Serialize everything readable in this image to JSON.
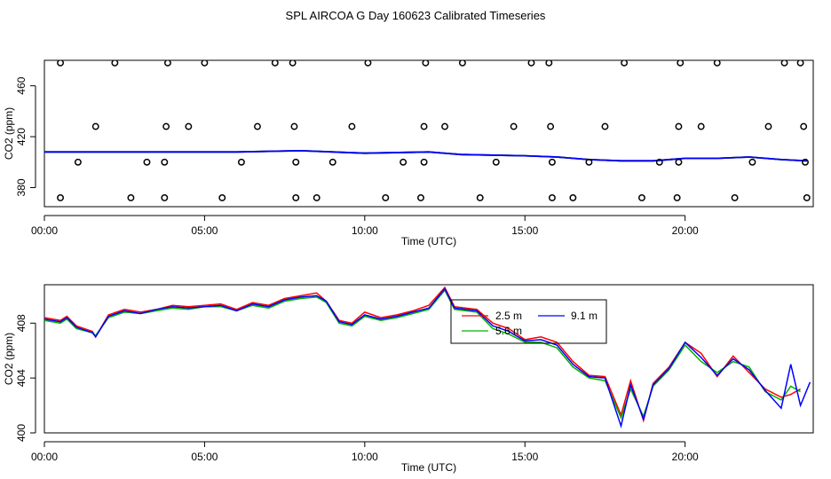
{
  "title": "SPL AIRCOA G  Day 160623  Calibrated Timeseries",
  "colors": {
    "series_2_5m": "#ff0000",
    "series_5_6m": "#00b000",
    "series_9_1m": "#0000ff",
    "points": "#000000"
  },
  "chart_data": [
    {
      "type": "scatter",
      "xlabel": "Time (UTC)",
      "ylabel": "CO2 (ppm)",
      "xlim": [
        0,
        24
      ],
      "ylim": [
        365,
        480
      ],
      "x_ticks": [
        0,
        5,
        10,
        15,
        20
      ],
      "x_tick_labels": [
        "00:00",
        "05:00",
        "10:00",
        "15:00",
        "20:00"
      ],
      "y_ticks": [
        380,
        420,
        460
      ],
      "y_tick_labels": [
        "380",
        "420",
        "460"
      ],
      "calibration_points": {
        "x": [
          0.5,
          2.2,
          3.85,
          5.0,
          7.2,
          7.75,
          10.1,
          11.9,
          13.05,
          15.2,
          15.75,
          18.1,
          19.85,
          21.0,
          23.1,
          23.6,
          1.6,
          3.8,
          4.5,
          6.65,
          7.8,
          9.6,
          11.85,
          12.5,
          14.65,
          15.8,
          17.5,
          19.8,
          20.5,
          22.6,
          23.7,
          1.05,
          3.2,
          3.75,
          6.15,
          7.85,
          9.0,
          11.2,
          11.85,
          14.1,
          15.85,
          17.0,
          19.2,
          19.8,
          22.1,
          23.75,
          0.5,
          2.7,
          3.75,
          5.55,
          7.85,
          8.5,
          10.65,
          11.75,
          13.6,
          15.85,
          16.5,
          18.65,
          19.75,
          21.55,
          23.8
        ],
        "y": [
          478,
          478,
          478,
          478,
          478,
          478,
          478,
          478,
          478,
          478,
          478,
          478,
          478,
          478,
          478,
          478,
          428,
          428,
          428,
          428,
          428,
          428,
          428,
          428,
          428,
          428,
          428,
          428,
          428,
          428,
          428,
          400,
          400,
          400,
          400,
          400,
          400,
          400,
          400,
          400,
          400,
          400,
          400,
          400,
          400,
          400,
          372,
          372,
          372,
          372,
          372,
          372,
          372,
          372,
          372,
          372,
          372,
          372,
          372,
          372,
          372
        ]
      },
      "series": [
        {
          "x": [
            0,
            2,
            4,
            6,
            8,
            10,
            12,
            13,
            15,
            16,
            17,
            18,
            19,
            20,
            21,
            22,
            23,
            23.8
          ],
          "y": [
            408,
            408,
            408,
            408,
            409,
            407,
            408,
            406,
            405,
            404,
            402,
            401,
            401,
            403,
            403,
            404,
            402,
            401
          ]
        },
        {
          "x": [
            0,
            2,
            4,
            6,
            8,
            10,
            12,
            13,
            15,
            16,
            17,
            18,
            19,
            20,
            21,
            22,
            23,
            23.8
          ],
          "y": [
            408,
            408,
            408,
            408,
            409,
            407,
            408,
            406,
            405,
            404,
            402,
            401,
            401,
            403,
            403,
            404,
            402,
            401
          ]
        },
        {
          "x": [
            0,
            2,
            4,
            6,
            8,
            10,
            12,
            13,
            15,
            16,
            17,
            18,
            19,
            20,
            21,
            22,
            23,
            23.8
          ],
          "y": [
            408,
            408,
            408,
            408,
            409,
            407,
            408,
            406,
            405,
            404,
            402,
            401,
            401,
            403,
            403,
            404,
            402,
            401
          ]
        }
      ]
    },
    {
      "type": "line",
      "xlabel": "Time (UTC)",
      "ylabel": "CO2 (ppm)",
      "xlim": [
        0,
        24
      ],
      "ylim": [
        400,
        410.8
      ],
      "x_ticks": [
        0,
        5,
        10,
        15,
        20
      ],
      "x_tick_labels": [
        "00:00",
        "05:00",
        "10:00",
        "15:00",
        "20:00"
      ],
      "y_ticks": [
        400,
        404,
        408
      ],
      "y_tick_labels": [
        "400",
        "404",
        "408"
      ],
      "legend": {
        "position": "top-center",
        "entries": [
          "2.5 m",
          "9.1 m",
          "5.6 m"
        ]
      },
      "series": [
        {
          "name": "2.5 m",
          "x": [
            0,
            0.5,
            0.7,
            1.0,
            1.5,
            1.6,
            2.0,
            2.5,
            3.0,
            3.5,
            4.0,
            4.5,
            5.0,
            5.5,
            6.0,
            6.5,
            7.0,
            7.5,
            8.0,
            8.5,
            8.8,
            9.2,
            9.6,
            10.0,
            10.5,
            11.0,
            11.5,
            12.0,
            12.5,
            12.8,
            13.5,
            14.0,
            14.5,
            15.0,
            15.5,
            16.0,
            16.5,
            17.0,
            17.5,
            18.0,
            18.3,
            18.7,
            19.0,
            19.5,
            20.0,
            20.5,
            21.0,
            21.5,
            22.0,
            22.5,
            23.0,
            23.3,
            23.6
          ],
          "y": [
            408.4,
            408.2,
            408.5,
            407.8,
            407.4,
            407.0,
            408.6,
            409.0,
            408.8,
            409.0,
            409.3,
            409.2,
            409.3,
            409.4,
            409.0,
            409.5,
            409.3,
            409.8,
            410.0,
            410.2,
            409.6,
            408.2,
            408.0,
            408.8,
            408.4,
            408.6,
            408.9,
            409.3,
            410.6,
            409.2,
            409.0,
            408.0,
            407.6,
            406.8,
            407.0,
            406.6,
            405.2,
            404.2,
            404.1,
            401.3,
            403.8,
            400.9,
            403.6,
            404.8,
            406.6,
            405.8,
            404.1,
            405.6,
            404.4,
            403.2,
            402.6,
            402.8,
            403.2
          ]
        },
        {
          "name": "5.6 m",
          "x": [
            0,
            0.5,
            0.7,
            1.0,
            1.5,
            1.6,
            2.0,
            2.5,
            3.0,
            3.5,
            4.0,
            4.5,
            5.0,
            5.5,
            6.0,
            6.5,
            7.0,
            7.5,
            8.0,
            8.5,
            8.8,
            9.2,
            9.6,
            10.0,
            10.5,
            11.0,
            11.5,
            12.0,
            12.5,
            12.8,
            13.5,
            14.0,
            14.5,
            15.0,
            15.5,
            16.0,
            16.5,
            17.0,
            17.5,
            18.0,
            18.3,
            18.7,
            19.0,
            19.5,
            20.0,
            20.5,
            21.0,
            21.5,
            22.0,
            22.5,
            23.0,
            23.3,
            23.6
          ],
          "y": [
            408.2,
            408.0,
            408.3,
            407.6,
            407.3,
            407.1,
            408.4,
            408.8,
            408.7,
            408.9,
            409.1,
            409.0,
            409.2,
            409.2,
            408.9,
            409.3,
            409.1,
            409.6,
            409.8,
            409.9,
            409.5,
            408.0,
            407.8,
            408.5,
            408.2,
            408.4,
            408.7,
            409.0,
            410.4,
            409.0,
            408.8,
            407.6,
            407.2,
            406.6,
            406.6,
            406.2,
            404.8,
            404.0,
            403.8,
            401.1,
            403.2,
            401.2,
            403.4,
            404.6,
            406.4,
            405.2,
            404.4,
            405.2,
            404.8,
            403.0,
            402.4,
            403.4,
            403.0
          ]
        },
        {
          "name": "9.1 m",
          "x": [
            0,
            0.5,
            0.7,
            1.0,
            1.5,
            1.6,
            2.0,
            2.5,
            3.0,
            3.5,
            4.0,
            4.5,
            5.0,
            5.5,
            6.0,
            6.5,
            7.0,
            7.5,
            8.0,
            8.5,
            8.8,
            9.2,
            9.6,
            10.0,
            10.5,
            11.0,
            11.5,
            12.0,
            12.5,
            12.8,
            13.5,
            14.0,
            14.5,
            15.0,
            15.5,
            16.0,
            16.5,
            17.0,
            17.5,
            18.0,
            18.3,
            18.7,
            19.0,
            19.5,
            20.0,
            20.5,
            21.0,
            21.5,
            22.0,
            22.5,
            23.0,
            23.3,
            23.6,
            23.9
          ],
          "y": [
            408.3,
            408.1,
            408.4,
            407.7,
            407.3,
            407.0,
            408.5,
            408.9,
            408.7,
            409.0,
            409.2,
            409.1,
            409.2,
            409.3,
            408.9,
            409.4,
            409.2,
            409.7,
            409.9,
            410.0,
            409.6,
            408.1,
            407.9,
            408.6,
            408.3,
            408.5,
            408.8,
            409.1,
            410.5,
            409.1,
            408.9,
            407.8,
            407.4,
            406.7,
            406.8,
            406.4,
            405.0,
            404.1,
            404.0,
            400.5,
            403.5,
            401.0,
            403.5,
            404.7,
            406.6,
            405.5,
            404.2,
            405.4,
            404.6,
            403.1,
            401.8,
            405.0,
            402.0,
            403.7
          ]
        }
      ]
    }
  ]
}
